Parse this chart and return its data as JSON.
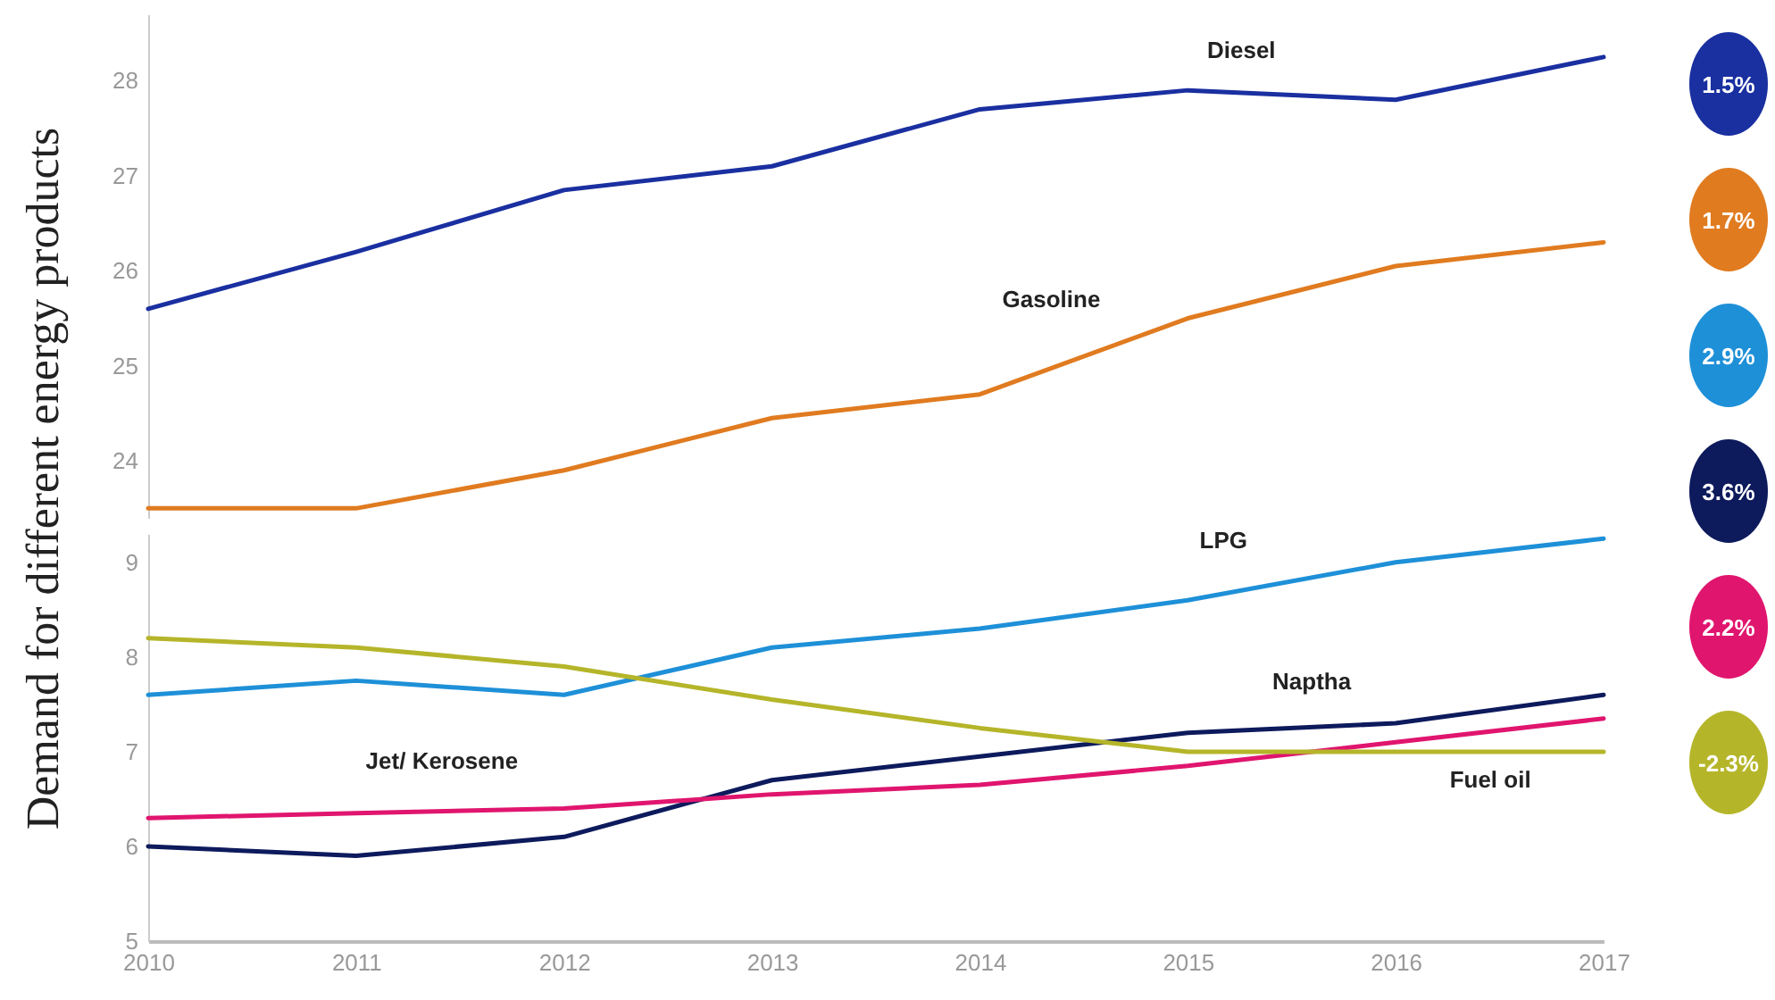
{
  "chart_data": [
    {
      "type": "line",
      "ylabel": "Demand for different energy products",
      "categories": [
        "2010",
        "2011",
        "2012",
        "2013",
        "2014",
        "2015",
        "2016",
        "2017"
      ],
      "ylim": [
        23.4,
        28.7
      ],
      "yticks": [
        24,
        25,
        26,
        27,
        28
      ],
      "tick_labels": "y",
      "grid": false,
      "legend": false,
      "series": [
        {
          "name": "Diesel",
          "color": "#1a2fa0",
          "values": [
            25.6,
            26.2,
            26.85,
            27.1,
            27.7,
            27.9,
            27.8,
            28.25
          ]
        },
        {
          "name": "Gasoline",
          "color": "#e07b20",
          "values": [
            23.5,
            23.5,
            23.9,
            24.45,
            24.7,
            25.5,
            26.05,
            26.3
          ]
        }
      ],
      "annotations": [
        "1.5%",
        "1.7%"
      ]
    },
    {
      "type": "line",
      "categories": [
        "2010",
        "2011",
        "2012",
        "2013",
        "2014",
        "2015",
        "2016",
        "2017"
      ],
      "ylim": [
        5,
        9.3
      ],
      "yticks": [
        5,
        6,
        7,
        8,
        9
      ],
      "grid": false,
      "legend": false,
      "series": [
        {
          "name": "LPG",
          "color": "#1e90d8",
          "values": [
            7.6,
            7.75,
            7.6,
            8.1,
            8.3,
            8.6,
            9.0,
            9.25
          ]
        },
        {
          "name": "Naptha",
          "color": "#0d1a5c",
          "values": [
            6.0,
            5.9,
            6.1,
            6.7,
            6.95,
            7.2,
            7.3,
            7.6
          ]
        },
        {
          "name": "Jet/ Kerosene",
          "color": "#e0156e",
          "values": [
            6.3,
            6.35,
            6.4,
            6.55,
            6.65,
            6.85,
            7.1,
            7.35
          ]
        },
        {
          "name": "Fuel oil",
          "color": "#b5b52a",
          "values": [
            8.2,
            8.1,
            7.9,
            7.55,
            7.25,
            7.0,
            7.0,
            7.0
          ]
        }
      ],
      "annotations": [
        "2.9%",
        "3.6%",
        "2.2%",
        "-2.3%"
      ]
    }
  ]
}
